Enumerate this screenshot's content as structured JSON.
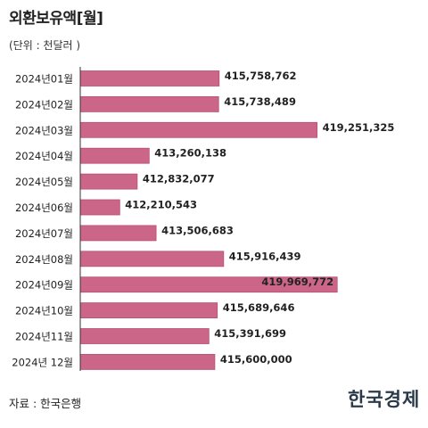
{
  "header": {
    "title": "외환보유액[월]",
    "unit": "(단위 : 천달러 )"
  },
  "footer": {
    "source": "자료 : 한국은행",
    "logo_text": "한국경제"
  },
  "colors": {
    "bar": "#cc6688",
    "bar_stroke": "#b8506f",
    "axis": "#333333",
    "label": "#222222"
  },
  "chart_data": {
    "type": "bar",
    "orientation": "horizontal",
    "title": "외환보유액[월]",
    "unit": "(단위 : 천달러 )",
    "categories": [
      "2024년01월",
      "2024년02월",
      "2024년03월",
      "2024년04월",
      "2024년05월",
      "2024년06월",
      "2024년07월",
      "2024년08월",
      "2024년09월",
      "2024년10월",
      "2024년11월",
      "2024년 12월"
    ],
    "values": [
      415758762,
      415738489,
      419251325,
      413260138,
      412832077,
      412210543,
      413506683,
      415916439,
      419969772,
      415689646,
      415391699,
      415600000
    ],
    "value_labels": [
      "415,758,762",
      "415,738,489",
      "419,251,325",
      "413,260,138",
      "412,832,077",
      "412,210,543",
      "413,506,683",
      "415,916,439",
      "419,969,772",
      "415,689,646",
      "415,391,699",
      "415,600,000"
    ],
    "xlim": [
      410800000,
      420600000
    ],
    "grid": false,
    "legend": "none"
  }
}
